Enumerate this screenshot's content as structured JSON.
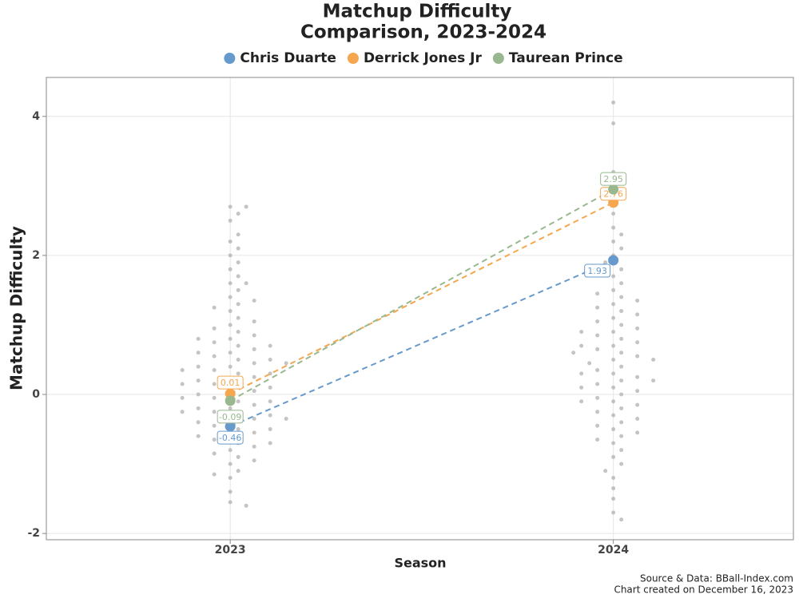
{
  "chart_data": {
    "type": "swarm",
    "title": [
      "Matchup Difficulty",
      "Comparison, 2023-2024"
    ],
    "x_label": "Season",
    "y_label": "Matchup Difficulty",
    "notes": [
      "Source & Data: BBall-Index.com",
      "Chart created on December 16, 2023"
    ],
    "x": [
      2023,
      2024
    ],
    "series": [
      {
        "name": "Chris Duarte",
        "color": "#6699cc",
        "values": [
          -0.46,
          1.93
        ]
      },
      {
        "name": "Derrick Jones Jr",
        "color": "#f5a64f",
        "values": [
          0.01,
          2.76
        ]
      },
      {
        "name": "Taurean Prince",
        "color": "#99b88f",
        "values": [
          -0.09,
          2.95
        ]
      }
    ],
    "population": [
      {
        "x": 2023,
        "color": "#b5b5b5",
        "values": [
          0.0,
          -0.1,
          0.1,
          -0.2,
          0.2,
          -0.3,
          0.3,
          -0.4,
          0.4,
          -0.5,
          0.5,
          -0.05,
          0.05,
          -0.15,
          0.15,
          -0.25,
          0.25,
          -0.35,
          0.35,
          -0.45,
          0.45,
          -0.6,
          0.6,
          -0.7,
          0.7,
          -0.8,
          0.8,
          -0.55,
          0.55,
          -0.65,
          0.65,
          -0.75,
          0.75,
          -0.9,
          0.9,
          -1.0,
          1.0,
          -0.85,
          0.85,
          -1.1,
          1.1,
          -1.2,
          1.2,
          -0.95,
          0.95,
          1.3,
          -1.15,
          1.4,
          1.5,
          1.6,
          1.7,
          1.8,
          1.9,
          2.0,
          2.1,
          2.2,
          2.3,
          2.5,
          2.6,
          2.7,
          -1.4,
          -1.55,
          -1.6,
          0.0,
          -0.1,
          0.1,
          -0.2,
          0.2,
          -0.3,
          0.3,
          -0.4,
          0.4,
          0.5,
          -0.5,
          0.6,
          -0.6,
          1.25,
          1.35,
          1.05,
          0.7,
          -0.7,
          0.8,
          1.6,
          2.7,
          -0.05,
          0.15,
          -0.25,
          0.35,
          0.45,
          -0.35
        ]
      },
      {
        "x": 2024,
        "color": "#b5b5b5",
        "values": [
          0.5,
          0.3,
          0.7,
          0.1,
          0.9,
          -0.1,
          1.1,
          -0.3,
          1.3,
          -0.5,
          0.6,
          0.2,
          0.8,
          0.0,
          1.0,
          -0.2,
          1.2,
          -0.4,
          1.4,
          -0.6,
          1.5,
          -0.7,
          1.6,
          -0.8,
          1.7,
          -0.9,
          1.8,
          -1.0,
          2.0,
          -1.2,
          2.2,
          -1.35,
          2.4,
          -1.5,
          2.6,
          -1.7,
          2.8,
          -1.8,
          3.2,
          3.9,
          4.2,
          0.4,
          0.65,
          0.15,
          0.85,
          -0.05,
          1.05,
          -0.25,
          1.25,
          -0.45,
          0.55,
          0.35,
          0.75,
          0.05,
          0.95,
          -0.15,
          1.15,
          -0.35,
          1.35,
          0.45,
          0.25,
          -0.55,
          1.9,
          2.1,
          -1.1,
          0.5,
          0.3,
          0.7,
          0.1,
          0.9,
          -0.1,
          1.45,
          -0.65,
          2.3,
          0.6,
          0.2
        ]
      }
    ],
    "xlim": [
      2022.52,
      2024.47
    ],
    "xticks": [
      2023,
      2024
    ],
    "ylim": [
      -2.09,
      4.56
    ],
    "yticks": [
      -2,
      0,
      2,
      4
    ],
    "grid": true,
    "legend": "top"
  }
}
